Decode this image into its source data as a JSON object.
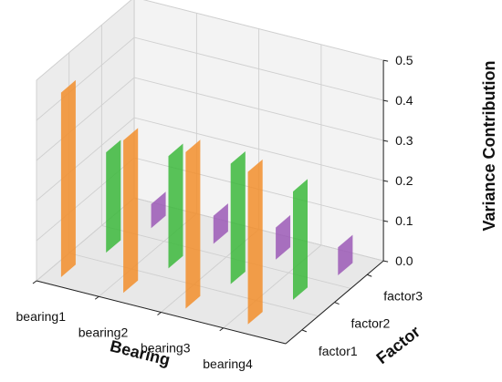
{
  "chart_data": {
    "type": "bar3d",
    "xlabel": "Bearing",
    "ylabel": "Factor",
    "zlabel": "Variance Contribution",
    "categories": [
      "bearing1",
      "bearing2",
      "bearing3",
      "bearing4"
    ],
    "factors": [
      "factor1",
      "factor2",
      "factor3"
    ],
    "zticks": [
      "0.0",
      "0.1",
      "0.2",
      "0.3",
      "0.4",
      "0.5"
    ],
    "zlim": [
      0,
      0.5
    ],
    "grid": true,
    "series": [
      {
        "factor": "factor1",
        "color": "#f28e2b",
        "values": [
          0.46,
          0.38,
          0.39,
          0.38
        ]
      },
      {
        "factor": "factor2",
        "color": "#3cb93c",
        "values": [
          0.25,
          0.28,
          0.3,
          0.27
        ]
      },
      {
        "factor": "factor3",
        "color": "#9b59b6",
        "values": [
          0.06,
          0.07,
          0.08,
          0.07
        ]
      }
    ]
  }
}
